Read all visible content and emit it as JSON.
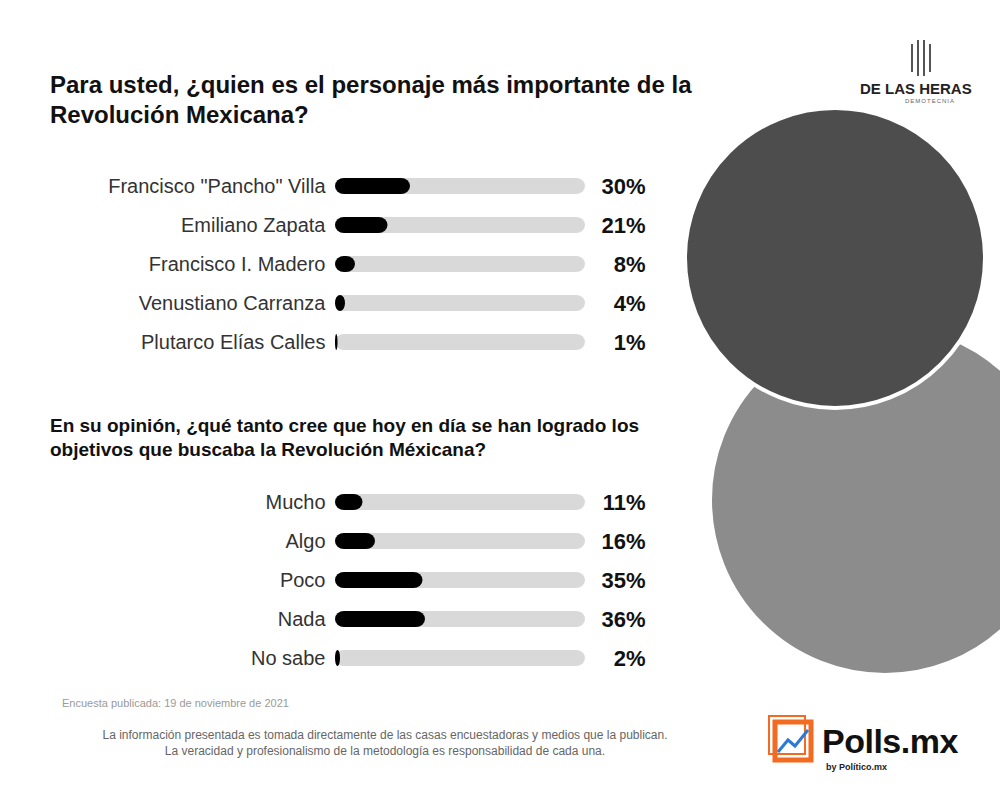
{
  "chart_data": [
    {
      "type": "bar",
      "orientation": "horizontal",
      "title": "Para usted, ¿quien es el personaje más importante de la Revolución Mexicana?",
      "categories": [
        "Francisco \"Pancho\" Villa",
        "Emiliano Zapata",
        "Francisco I. Madero",
        "Venustiano Carranza",
        "Plutarco Elías Calles"
      ],
      "values": [
        30,
        21,
        8,
        4,
        1
      ],
      "value_labels": [
        "30%",
        "21%",
        "8%",
        "4%",
        "1%"
      ],
      "data_labels": true,
      "color": "#000000",
      "xlim": [
        0,
        100
      ],
      "tick_labels": "y",
      "grid": false
    },
    {
      "type": "bar",
      "orientation": "horizontal",
      "title": "En su opinión, ¿qué tanto cree que hoy en día se han logrado los objetivos que buscaba la Revolución Méxicana?",
      "categories": [
        "Mucho",
        "Algo",
        "Poco",
        "Nada",
        "No sabe"
      ],
      "values": [
        11,
        16,
        35,
        36,
        2
      ],
      "value_labels": [
        "11%",
        "16%",
        "35%",
        "36%",
        "2%"
      ],
      "data_labels": true,
      "color": "#000000",
      "xlim": [
        0,
        100
      ],
      "tick_labels": "y",
      "grid": false
    }
  ],
  "notes": {
    "published": "Encuesta publicada: 19 de noviembre de 2021",
    "disclaimer": [
      "La información presentada es tomada directamente de las casas encuestadoras y medios que la publican.",
      "La veracidad y profesionalismo de la metodología es responsabilidad de cada una."
    ]
  },
  "logos": {
    "pollster": "DE LAS HERAS",
    "pollster_sub": "DEMOTECNIA",
    "brand": "Polls.mx",
    "brand_sub": "by Político.mx"
  }
}
